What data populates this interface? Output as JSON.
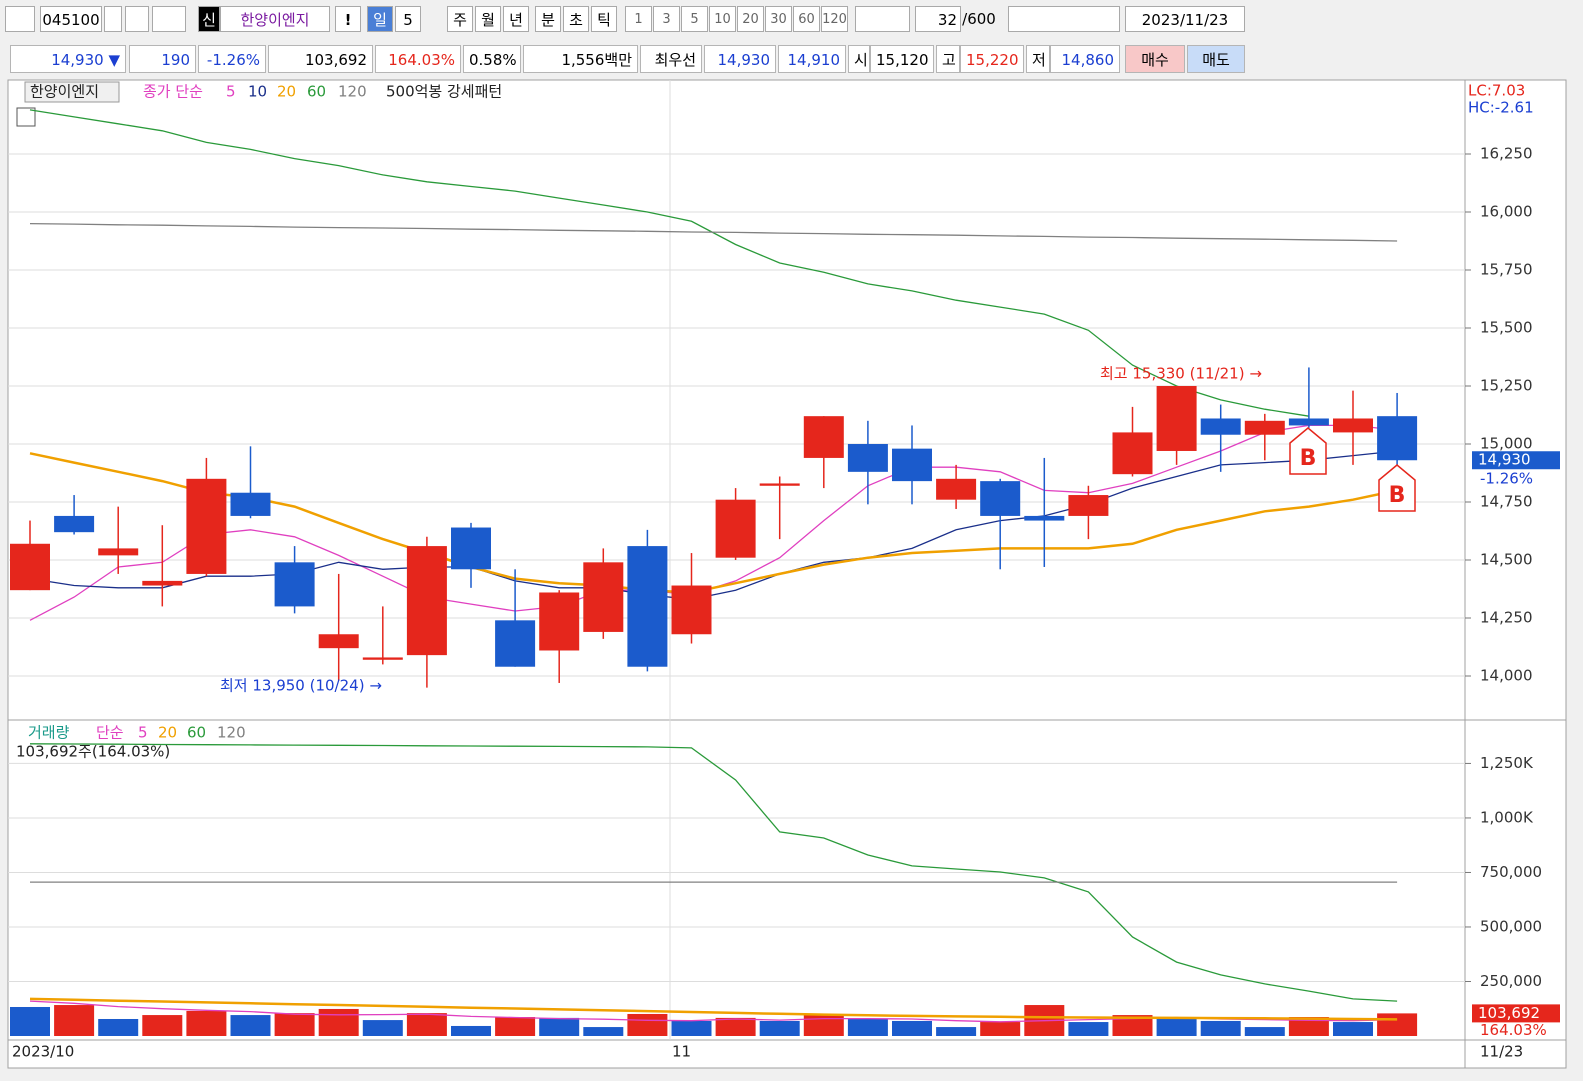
{
  "toolbar": {
    "code": "045100",
    "badge": "신",
    "name": "한양이엔지",
    "alert": "!",
    "periods": [
      "일",
      "5",
      "주",
      "월",
      "년",
      "분",
      "초",
      "틱"
    ],
    "intervals": [
      "1",
      "3",
      "5",
      "10",
      "20",
      "30",
      "60",
      "120"
    ],
    "count": "32",
    "max": "/600",
    "date": "2023/11/23"
  },
  "quote": {
    "price": "14,930 ▼",
    "change": "190",
    "rate": "-1.26%",
    "volume": "103,692",
    "volume_rate": "164.03%",
    "turnover": "0.58%",
    "amount": "1,556백만",
    "best": "최우선",
    "ask": "14,930",
    "bid": "14,910",
    "open_label": "시",
    "open": "15,120",
    "high_label": "고",
    "high": "15,220",
    "low_label": "저",
    "low": "14,860",
    "buy": "매수",
    "sell": "매도"
  },
  "chart_data": [
    {
      "type": "candlestick",
      "title": "한양이엔지",
      "legend_label": "종가 단순",
      "pattern": "500억봉 강세패턴",
      "lc": "LC:7.03",
      "hc": "HC:-2.61",
      "up_color": "#e5261c",
      "down_color": "#1b5bcc",
      "open": [
        14370,
        14690,
        14520,
        14390,
        14440,
        14790,
        14490,
        14120,
        14070,
        14090,
        14640,
        14240,
        14110,
        14190,
        14560,
        14180,
        14510,
        14820,
        14940,
        15000,
        14980,
        14760,
        14840,
        14690,
        14690,
        14870,
        14970,
        15110,
        15040,
        15110,
        15050,
        15120
      ],
      "high": [
        14670,
        14780,
        14730,
        14650,
        14940,
        14990,
        14560,
        14440,
        14300,
        14600,
        14660,
        14460,
        14370,
        14550,
        14630,
        14530,
        14810,
        14860,
        15120,
        15100,
        15080,
        14910,
        14850,
        14940,
        14820,
        15160,
        15250,
        15170,
        15130,
        15330,
        15230,
        15220
      ],
      "low": [
        14370,
        14610,
        14440,
        14300,
        14430,
        14680,
        14270,
        13980,
        14050,
        13950,
        14380,
        14040,
        13970,
        14160,
        14020,
        14140,
        14500,
        14590,
        14810,
        14740,
        14740,
        14720,
        14460,
        14470,
        14590,
        14860,
        14910,
        14880,
        14930,
        15070,
        14910,
        14860
      ],
      "close": [
        14570,
        14620,
        14550,
        14410,
        14850,
        14690,
        14300,
        14180,
        14080,
        14560,
        14460,
        14040,
        14360,
        14490,
        14040,
        14390,
        14760,
        14830,
        15120,
        14880,
        14840,
        14850,
        14690,
        14670,
        14780,
        15050,
        15250,
        15040,
        15100,
        15080,
        15110,
        14930
      ],
      "series": [
        {
          "name": "5",
          "color": "#e040c0",
          "values": [
            14240,
            14340,
            14470,
            14490,
            14610,
            14630,
            14600,
            14520,
            14430,
            14340,
            14310,
            14280,
            14300,
            14370,
            14370,
            14350,
            14410,
            14510,
            14670,
            14820,
            14900,
            14900,
            14880,
            14800,
            14790,
            14830,
            14900,
            14970,
            15050,
            15080,
            15080,
            15060
          ]
        },
        {
          "name": "10",
          "color": "#1a2f8a",
          "values": [
            14420,
            14390,
            14380,
            14380,
            14430,
            14430,
            14440,
            14490,
            14460,
            14470,
            14470,
            14410,
            14380,
            14380,
            14350,
            14330,
            14370,
            14440,
            14490,
            14510,
            14550,
            14630,
            14670,
            14690,
            14740,
            14810,
            14860,
            14910,
            14920,
            14930,
            14950,
            14970
          ]
        },
        {
          "name": "20",
          "color": "#f0a000",
          "values": [
            14960,
            14920,
            14880,
            14840,
            14790,
            14770,
            14730,
            14660,
            14590,
            14530,
            14470,
            14420,
            14400,
            14390,
            14370,
            14360,
            14400,
            14440,
            14480,
            14510,
            14530,
            14540,
            14550,
            14550,
            14550,
            14570,
            14630,
            14670,
            14710,
            14730,
            14760,
            14800
          ]
        },
        {
          "name": "60",
          "color": "#2a9a3a",
          "values": [
            16440,
            16410,
            16380,
            16350,
            16300,
            16270,
            16230,
            16200,
            16160,
            16130,
            16110,
            16090,
            16060,
            16030,
            16000,
            15960,
            15860,
            15780,
            15740,
            15690,
            15660,
            15620,
            15590,
            15560,
            15490,
            15340,
            15250,
            15190,
            15150,
            15120,
            null,
            null
          ]
        },
        {
          "name": "120",
          "color": "#808080",
          "values": [
            15950,
            15948,
            15945,
            15943,
            15940,
            15938,
            15935,
            15933,
            15931,
            15929,
            15926,
            15924,
            15921,
            15919,
            15917,
            15914,
            15912,
            15909,
            15907,
            15904,
            15902,
            15900,
            15897,
            15895,
            15892,
            15890,
            15887,
            15885,
            15883,
            15880,
            15878,
            15875
          ]
        }
      ],
      "annotations": [
        {
          "text": "최고 15,330 (11/21) →",
          "color": "#e5261c"
        },
        {
          "text": "최저 13,950 (10/24) →",
          "color": "#1b3fd1"
        }
      ],
      "signals": [
        "B",
        "B"
      ],
      "last_price": {
        "value": 14930,
        "label": "14,930"
      },
      "last_change": "-1.26%",
      "ylim": [
        13819,
        16569
      ],
      "yticks": [
        {
          "value": 14000,
          "label": "14,000"
        },
        {
          "value": 14250,
          "label": "14,250"
        },
        {
          "value": 14500,
          "label": "14,500"
        },
        {
          "value": 14750,
          "label": "14,750"
        },
        {
          "value": 15000,
          "label": "15,000"
        },
        {
          "value": 15250,
          "label": "15,250"
        },
        {
          "value": 15500,
          "label": "15,500"
        },
        {
          "value": 15750,
          "label": "15,750"
        },
        {
          "value": 16000,
          "label": "16,000"
        },
        {
          "value": 16250,
          "label": "16,250"
        }
      ],
      "grid": true
    },
    {
      "type": "bar",
      "title": "거래량",
      "legend_label": "단순",
      "value_label": "103,692주(164.03%)",
      "last_label": "103,692",
      "last_rate": "164.03%",
      "categories": [
        "2023/10",
        null,
        null,
        null,
        null,
        null,
        null,
        null,
        null,
        null,
        null,
        null,
        null,
        null,
        null,
        "11",
        null,
        null,
        null,
        null,
        null,
        null,
        null,
        null,
        null,
        null,
        null,
        null,
        null,
        null,
        null,
        "11/23"
      ],
      "values": [
        133000,
        142000,
        78000,
        96000,
        115000,
        96000,
        105000,
        124000,
        73000,
        105000,
        46000,
        87000,
        83000,
        41000,
        101000,
        69000,
        83000,
        69000,
        96000,
        78000,
        69000,
        41000,
        64000,
        142000,
        64000,
        96000,
        78000,
        69000,
        41000,
        87000,
        64000,
        103692
      ],
      "colors": [
        "#1b5bcc",
        "#e5261c",
        "#1b5bcc",
        "#e5261c",
        "#e5261c",
        "#1b5bcc",
        "#e5261c",
        "#e5261c",
        "#1b5bcc",
        "#e5261c",
        "#1b5bcc",
        "#e5261c",
        "#1b5bcc",
        "#1b5bcc",
        "#e5261c",
        "#1b5bcc",
        "#e5261c",
        "#1b5bcc",
        "#e5261c",
        "#1b5bcc",
        "#1b5bcc",
        "#1b5bcc",
        "#e5261c",
        "#e5261c",
        "#1b5bcc",
        "#e5261c",
        "#1b5bcc",
        "#1b5bcc",
        "#1b5bcc",
        "#e5261c",
        "#1b5bcc",
        "#e5261c"
      ],
      "series": [
        {
          "name": "5",
          "color": "#e040c0",
          "values": [
            160000,
            150000,
            135000,
            125000,
            118000,
            112000,
            100000,
            97000,
            98000,
            100000,
            90000,
            85000,
            80000,
            77000,
            72000,
            70000,
            78000,
            73000,
            80000,
            80000,
            78000,
            70000,
            65000,
            70000,
            75000,
            80000,
            85000,
            78000,
            75000,
            72000,
            70000,
            75000
          ]
        },
        {
          "name": "20",
          "color": "#f0a000",
          "values": [
            170000,
            166000,
            162000,
            158000,
            154000,
            150000,
            146000,
            142000,
            138000,
            134000,
            130000,
            126000,
            122000,
            118000,
            114000,
            110000,
            106000,
            102000,
            98000,
            95000,
            92000,
            90000,
            88000,
            86000,
            85000,
            84000,
            83000,
            82000,
            81000,
            80000,
            78000,
            76000
          ]
        },
        {
          "name": "60",
          "color": "#2a9a3a",
          "values": [
            1340000,
            1339000,
            1338000,
            1337000,
            1336000,
            1335000,
            1334000,
            1333000,
            1332000,
            1331000,
            1330000,
            1329000,
            1328000,
            1327000,
            1326000,
            1321000,
            1174000,
            936000,
            908000,
            830000,
            780000,
            766000,
            752000,
            725000,
            661000,
            454000,
            339000,
            280000,
            239000,
            206000,
            170000,
            160000
          ]
        },
        {
          "name": "120",
          "color": "#808080",
          "values": [
            706000,
            706000,
            706000,
            706000,
            706000,
            706000,
            706000,
            706000,
            706000,
            706000,
            706000,
            706000,
            706000,
            706000,
            706000,
            706000,
            706000,
            706000,
            706000,
            706000,
            706000,
            706000,
            706000,
            706000,
            706000,
            706000,
            706000,
            706000,
            706000,
            706000,
            706000,
            706000
          ]
        }
      ],
      "ylim": [
        0,
        1440000
      ],
      "yticks": [
        {
          "value": 250000,
          "label": "250,000"
        },
        {
          "value": 500000,
          "label": "500,000"
        },
        {
          "value": 750000,
          "label": "750,000"
        },
        {
          "value": 1000000,
          "label": "1,000K"
        },
        {
          "value": 1250000,
          "label": "1,250K"
        }
      ],
      "grid": true
    }
  ]
}
